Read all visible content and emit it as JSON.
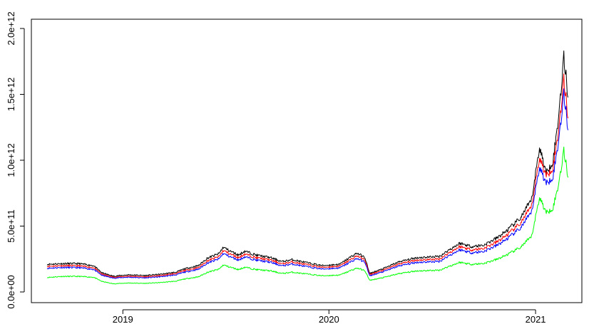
{
  "chart_data": {
    "type": "line",
    "title": "",
    "xlabel": "",
    "ylabel": "",
    "x_range": [
      "2018-08-20",
      "2021-02-28"
    ],
    "xlim": [
      "2018-07-23",
      "2021-03-24"
    ],
    "ylim": [
      0,
      2000000000000
    ],
    "grid": false,
    "legend": "none",
    "x_ticks": [
      {
        "date": "2019-01-01",
        "label": "2019"
      },
      {
        "date": "2020-01-01",
        "label": "2020"
      },
      {
        "date": "2021-01-01",
        "label": "2021"
      }
    ],
    "y_ticks": [
      {
        "value": 0,
        "label": "0.0e+00"
      },
      {
        "value": 500000000000,
        "label": "5.0e+11"
      },
      {
        "value": 1000000000000,
        "label": "1.0e+12"
      },
      {
        "value": 1500000000000,
        "label": "1.5e+12"
      },
      {
        "value": 2000000000000,
        "label": "2.0e+12"
      }
    ],
    "series": [
      {
        "color": "#000000",
        "points": [
          [
            "2018-08-20",
            210000000000
          ],
          [
            "2018-09-15",
            215000000000
          ],
          [
            "2018-10-15",
            215000000000
          ],
          [
            "2018-11-10",
            200000000000
          ],
          [
            "2018-11-25",
            145000000000
          ],
          [
            "2018-12-15",
            120000000000
          ],
          [
            "2019-01-10",
            130000000000
          ],
          [
            "2019-02-10",
            125000000000
          ],
          [
            "2019-03-10",
            135000000000
          ],
          [
            "2019-04-05",
            150000000000
          ],
          [
            "2019-04-20",
            175000000000
          ],
          [
            "2019-05-15",
            200000000000
          ],
          [
            "2019-05-30",
            255000000000
          ],
          [
            "2019-06-20",
            290000000000
          ],
          [
            "2019-06-28",
            340000000000
          ],
          [
            "2019-07-10",
            310000000000
          ],
          [
            "2019-07-25",
            280000000000
          ],
          [
            "2019-08-05",
            310000000000
          ],
          [
            "2019-08-25",
            280000000000
          ],
          [
            "2019-09-20",
            260000000000
          ],
          [
            "2019-10-10",
            230000000000
          ],
          [
            "2019-10-28",
            245000000000
          ],
          [
            "2019-11-25",
            220000000000
          ],
          [
            "2019-12-20",
            200000000000
          ],
          [
            "2020-01-20",
            210000000000
          ],
          [
            "2020-02-10",
            270000000000
          ],
          [
            "2020-02-20",
            295000000000
          ],
          [
            "2020-03-05",
            260000000000
          ],
          [
            "2020-03-13",
            140000000000
          ],
          [
            "2020-04-05",
            175000000000
          ],
          [
            "2020-05-05",
            230000000000
          ],
          [
            "2020-06-05",
            260000000000
          ],
          [
            "2020-07-15",
            270000000000
          ],
          [
            "2020-08-01",
            320000000000
          ],
          [
            "2020-08-20",
            370000000000
          ],
          [
            "2020-09-10",
            345000000000
          ],
          [
            "2020-10-01",
            355000000000
          ],
          [
            "2020-10-25",
            410000000000
          ],
          [
            "2020-11-15",
            480000000000
          ],
          [
            "2020-12-05",
            560000000000
          ],
          [
            "2020-12-25",
            700000000000
          ],
          [
            "2021-01-08",
            1100000000000
          ],
          [
            "2021-01-20",
            900000000000
          ],
          [
            "2021-02-01",
            1000000000000
          ],
          [
            "2021-02-10",
            1300000000000
          ],
          [
            "2021-02-20",
            1780000000000
          ],
          [
            "2021-02-28",
            1480000000000
          ]
        ]
      },
      {
        "color": "#ff0000",
        "points": [
          [
            "2018-08-20",
            195000000000
          ],
          [
            "2018-09-15",
            200000000000
          ],
          [
            "2018-10-15",
            198000000000
          ],
          [
            "2018-11-10",
            185000000000
          ],
          [
            "2018-11-25",
            135000000000
          ],
          [
            "2018-12-15",
            112000000000
          ],
          [
            "2019-01-10",
            120000000000
          ],
          [
            "2019-02-10",
            115000000000
          ],
          [
            "2019-03-10",
            125000000000
          ],
          [
            "2019-04-05",
            140000000000
          ],
          [
            "2019-04-20",
            162000000000
          ],
          [
            "2019-05-15",
            185000000000
          ],
          [
            "2019-05-30",
            235000000000
          ],
          [
            "2019-06-20",
            268000000000
          ],
          [
            "2019-06-28",
            315000000000
          ],
          [
            "2019-07-10",
            288000000000
          ],
          [
            "2019-07-25",
            260000000000
          ],
          [
            "2019-08-05",
            288000000000
          ],
          [
            "2019-08-25",
            260000000000
          ],
          [
            "2019-09-20",
            242000000000
          ],
          [
            "2019-10-10",
            213000000000
          ],
          [
            "2019-10-28",
            228000000000
          ],
          [
            "2019-11-25",
            205000000000
          ],
          [
            "2019-12-20",
            187000000000
          ],
          [
            "2020-01-20",
            196000000000
          ],
          [
            "2020-02-10",
            250000000000
          ],
          [
            "2020-02-20",
            275000000000
          ],
          [
            "2020-03-05",
            242000000000
          ],
          [
            "2020-03-13",
            132000000000
          ],
          [
            "2020-04-05",
            163000000000
          ],
          [
            "2020-05-05",
            214000000000
          ],
          [
            "2020-06-05",
            242000000000
          ],
          [
            "2020-07-15",
            250000000000
          ],
          [
            "2020-08-01",
            298000000000
          ],
          [
            "2020-08-20",
            345000000000
          ],
          [
            "2020-09-10",
            320000000000
          ],
          [
            "2020-10-01",
            330000000000
          ],
          [
            "2020-10-25",
            380000000000
          ],
          [
            "2020-11-15",
            445000000000
          ],
          [
            "2020-12-05",
            520000000000
          ],
          [
            "2020-12-25",
            650000000000
          ],
          [
            "2021-01-08",
            1020000000000
          ],
          [
            "2021-01-20",
            880000000000
          ],
          [
            "2021-02-01",
            950000000000
          ],
          [
            "2021-02-10",
            1200000000000
          ],
          [
            "2021-02-20",
            1610000000000
          ],
          [
            "2021-02-28",
            1320000000000
          ]
        ]
      },
      {
        "color": "#0000ff",
        "points": [
          [
            "2018-08-20",
            180000000000
          ],
          [
            "2018-09-15",
            186000000000
          ],
          [
            "2018-10-15",
            184000000000
          ],
          [
            "2018-11-10",
            172000000000
          ],
          [
            "2018-11-25",
            126000000000
          ],
          [
            "2018-12-15",
            105000000000
          ],
          [
            "2019-01-10",
            112000000000
          ],
          [
            "2019-02-10",
            107000000000
          ],
          [
            "2019-03-10",
            116000000000
          ],
          [
            "2019-04-05",
            130000000000
          ],
          [
            "2019-04-20",
            150000000000
          ],
          [
            "2019-05-15",
            172000000000
          ],
          [
            "2019-05-30",
            218000000000
          ],
          [
            "2019-06-20",
            250000000000
          ],
          [
            "2019-06-28",
            292000000000
          ],
          [
            "2019-07-10",
            267000000000
          ],
          [
            "2019-07-25",
            242000000000
          ],
          [
            "2019-08-05",
            267000000000
          ],
          [
            "2019-08-25",
            242000000000
          ],
          [
            "2019-09-20",
            225000000000
          ],
          [
            "2019-10-10",
            198000000000
          ],
          [
            "2019-10-28",
            212000000000
          ],
          [
            "2019-11-25",
            190000000000
          ],
          [
            "2019-12-20",
            174000000000
          ],
          [
            "2020-01-20",
            182000000000
          ],
          [
            "2020-02-10",
            232000000000
          ],
          [
            "2020-02-20",
            255000000000
          ],
          [
            "2020-03-05",
            225000000000
          ],
          [
            "2020-03-13",
            122000000000
          ],
          [
            "2020-04-05",
            152000000000
          ],
          [
            "2020-05-05",
            199000000000
          ],
          [
            "2020-06-05",
            225000000000
          ],
          [
            "2020-07-15",
            232000000000
          ],
          [
            "2020-08-01",
            277000000000
          ],
          [
            "2020-08-20",
            320000000000
          ],
          [
            "2020-09-10",
            298000000000
          ],
          [
            "2020-10-01",
            307000000000
          ],
          [
            "2020-10-25",
            354000000000
          ],
          [
            "2020-11-15",
            414000000000
          ],
          [
            "2020-12-05",
            484000000000
          ],
          [
            "2020-12-25",
            605000000000
          ],
          [
            "2021-01-08",
            950000000000
          ],
          [
            "2021-01-20",
            820000000000
          ],
          [
            "2021-02-01",
            880000000000
          ],
          [
            "2021-02-10",
            1120000000000
          ],
          [
            "2021-02-20",
            1500000000000
          ],
          [
            "2021-02-28",
            1230000000000
          ]
        ]
      },
      {
        "color": "#00ff00",
        "points": [
          [
            "2018-08-20",
            110000000000
          ],
          [
            "2018-09-15",
            118000000000
          ],
          [
            "2018-10-15",
            118000000000
          ],
          [
            "2018-11-10",
            112000000000
          ],
          [
            "2018-11-25",
            80000000000
          ],
          [
            "2018-12-15",
            62000000000
          ],
          [
            "2019-01-10",
            68000000000
          ],
          [
            "2019-02-10",
            65000000000
          ],
          [
            "2019-03-10",
            72000000000
          ],
          [
            "2019-04-05",
            82000000000
          ],
          [
            "2019-04-20",
            98000000000
          ],
          [
            "2019-05-15",
            115000000000
          ],
          [
            "2019-05-30",
            148000000000
          ],
          [
            "2019-06-20",
            172000000000
          ],
          [
            "2019-06-28",
            205000000000
          ],
          [
            "2019-07-10",
            188000000000
          ],
          [
            "2019-07-25",
            170000000000
          ],
          [
            "2019-08-05",
            188000000000
          ],
          [
            "2019-08-25",
            170000000000
          ],
          [
            "2019-09-20",
            160000000000
          ],
          [
            "2019-10-10",
            140000000000
          ],
          [
            "2019-10-28",
            150000000000
          ],
          [
            "2019-11-25",
            135000000000
          ],
          [
            "2019-12-20",
            123000000000
          ],
          [
            "2020-01-20",
            128000000000
          ],
          [
            "2020-02-10",
            165000000000
          ],
          [
            "2020-02-20",
            182000000000
          ],
          [
            "2020-03-05",
            160000000000
          ],
          [
            "2020-03-13",
            88000000000
          ],
          [
            "2020-04-05",
            108000000000
          ],
          [
            "2020-05-05",
            140000000000
          ],
          [
            "2020-06-05",
            160000000000
          ],
          [
            "2020-07-15",
            165000000000
          ],
          [
            "2020-08-01",
            195000000000
          ],
          [
            "2020-08-20",
            225000000000
          ],
          [
            "2020-09-10",
            210000000000
          ],
          [
            "2020-10-01",
            216000000000
          ],
          [
            "2020-10-25",
            248000000000
          ],
          [
            "2020-11-15",
            290000000000
          ],
          [
            "2020-12-05",
            338000000000
          ],
          [
            "2020-12-25",
            420000000000
          ],
          [
            "2021-01-08",
            720000000000
          ],
          [
            "2021-01-20",
            600000000000
          ],
          [
            "2021-02-01",
            640000000000
          ],
          [
            "2021-02-10",
            800000000000
          ],
          [
            "2021-02-20",
            1070000000000
          ],
          [
            "2021-02-28",
            870000000000
          ]
        ]
      }
    ]
  }
}
